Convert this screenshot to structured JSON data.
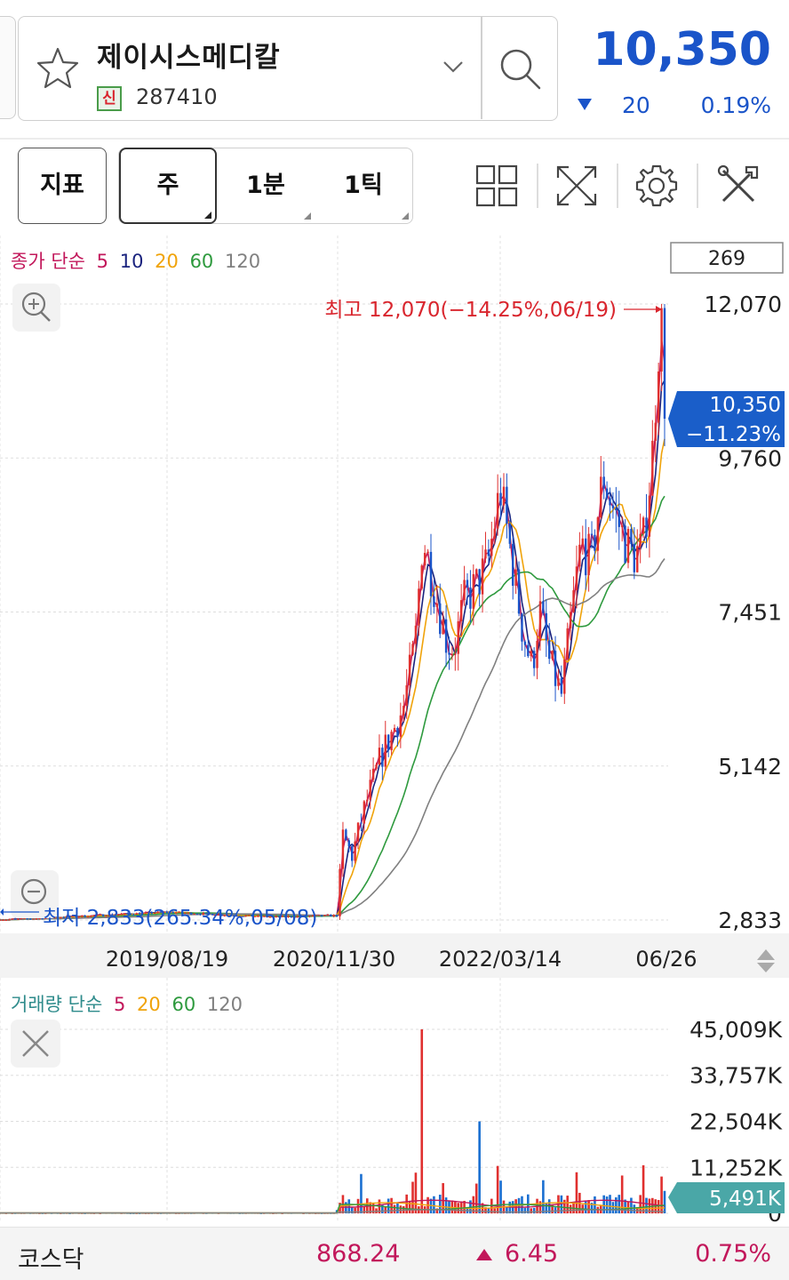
{
  "header": {
    "stock_name": "제이시스메디칼",
    "badge": "신",
    "stock_code": "287410",
    "current_price": "10,350",
    "change": "20",
    "change_rate": "0.19%",
    "change_direction": "down"
  },
  "toolbar": {
    "indicator_label": "지표",
    "periods": [
      {
        "label": "주",
        "active": true
      },
      {
        "label": "1분",
        "active": false
      },
      {
        "label": "1틱",
        "active": false
      }
    ],
    "icons": [
      "grid-layout-icon",
      "fullscreen-icon",
      "settings-gear-icon",
      "tools-icon"
    ]
  },
  "price_panel": {
    "legend_title": "종가 단순",
    "ma_periods": [
      "5",
      "10",
      "20",
      "60",
      "120"
    ],
    "ma_colors": [
      "#c2185b",
      "#1a237e",
      "#f0a30a",
      "#2e9a3e",
      "#808080"
    ],
    "count_box": "269",
    "high_label": "최고 12,070(−14.25%,06/19)",
    "low_label": "최저 2,833(265.34%,05/08)",
    "current_tag_price": "10,350",
    "current_tag_rate": "−11.23%"
  },
  "volume_panel": {
    "legend_title": "거래량 단순",
    "ma_periods": [
      "5",
      "20",
      "60",
      "120"
    ],
    "ma_colors": [
      "#c2185b",
      "#f0a30a",
      "#2e9a3e",
      "#808080"
    ],
    "current_tag": "5,491K"
  },
  "date_axis": [
    "2019/08/19",
    "2020/11/30",
    "2022/03/14",
    "06/26"
  ],
  "chart_data": [
    {
      "type": "line",
      "title": "종가 단순 5 10 20 60 120",
      "y_ticks": [
        "12,070",
        "9,760",
        "7,451",
        "5,142",
        "2,833"
      ],
      "ylim": [
        2833,
        12070
      ],
      "x_ticks": [
        "2019/08/19",
        "2020/11/30",
        "2022/03/14",
        "06/26"
      ],
      "series": [
        {
          "name": "종가",
          "x": [
            "2019/05/08",
            "2019/08/19",
            "2020/06/01",
            "2020/11/30",
            "2020/12/14",
            "2021/01/11",
            "2021/02/15",
            "2021/04/05",
            "2021/06/07",
            "2021/07/12",
            "2021/08/02",
            "2021/09/06",
            "2021/10/11",
            "2021/11/01",
            "2021/11/29",
            "2022/01/10",
            "2022/02/07",
            "2022/03/14",
            "2022/04/11",
            "2022/05/16",
            "2022/06/13",
            "2022/07/04",
            "2022/08/01",
            "2022/09/05",
            "2022/10/03",
            "2022/10/31",
            "2022/11/28",
            "2023/01/02",
            "2023/01/30",
            "2023/02/27",
            "2023/03/27",
            "2023/04/24",
            "2023/05/22",
            "2023/06/12",
            "2023/06/19",
            "2023/06/26"
          ],
          "values": [
            2833,
            2950,
            2880,
            2900,
            4100,
            3800,
            4500,
            5300,
            6000,
            7000,
            8600,
            7800,
            7000,
            6900,
            7600,
            7900,
            8200,
            9300,
            8400,
            7200,
            6600,
            7500,
            6700,
            6200,
            7400,
            8500,
            8200,
            9500,
            9000,
            8600,
            8300,
            8400,
            9800,
            11800,
            11700,
            10350
          ]
        }
      ]
    },
    {
      "type": "bar",
      "title": "거래량 단순 5 20 60 120",
      "y_ticks": [
        "45,009K",
        "33,757K",
        "22,504K",
        "11,252K",
        "0"
      ],
      "ylim": [
        0,
        45009
      ],
      "series": [
        {
          "name": "거래량",
          "x": [
            "2020/11/30",
            "2021/08/02",
            "2022/01/10",
            "2022/03/14",
            "2023/06/19",
            "2023/06/26"
          ],
          "values": [
            800,
            45009,
            22504,
            8000,
            9000,
            5491
          ]
        }
      ]
    }
  ],
  "bottom_ticker": {
    "name": "코스닥",
    "value": "868.24",
    "change": "6.45",
    "rate": "0.75%",
    "direction": "up"
  }
}
